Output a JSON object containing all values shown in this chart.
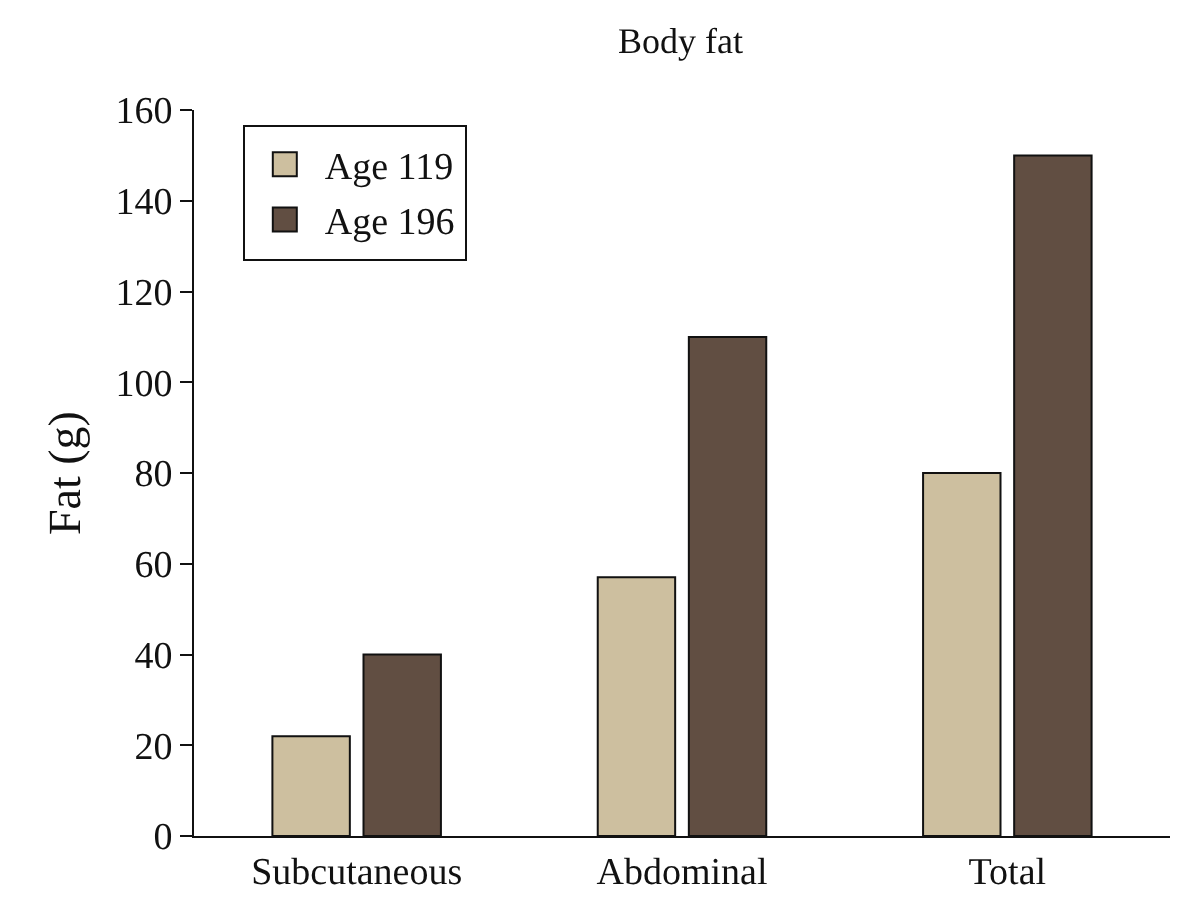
{
  "chart_data": {
    "type": "bar",
    "title": "Body fat",
    "ylabel": "Fat (g)",
    "categories": [
      "Subcutaneous",
      "Abdominal",
      "Total"
    ],
    "series": [
      {
        "name": "Age 119",
        "color": "#cdbf9f",
        "values": [
          22,
          57,
          80
        ]
      },
      {
        "name": "Age 196",
        "color": "#614e42",
        "values": [
          40,
          110,
          150
        ]
      }
    ],
    "ylim": [
      0,
      160
    ],
    "yticks": [
      0,
      20,
      40,
      60,
      80,
      100,
      120,
      140,
      160
    ],
    "grid": false,
    "legend": "top left"
  }
}
